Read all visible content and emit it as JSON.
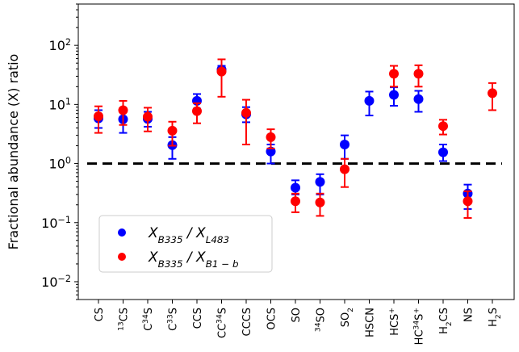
{
  "chart_data": {
    "type": "scatter",
    "ylabel": "Fractional abundance (X) ratio",
    "yscale": "log",
    "ylim": [
      0.005,
      500
    ],
    "yticks": [
      {
        "value": 0.01,
        "base": "10",
        "exp": "−2"
      },
      {
        "value": 0.1,
        "base": "10",
        "exp": "−1"
      },
      {
        "value": 1,
        "base": "10",
        "exp": "0"
      },
      {
        "value": 10,
        "base": "10",
        "exp": "1"
      },
      {
        "value": 100,
        "base": "10",
        "exp": "2"
      }
    ],
    "reference_line": {
      "y": 1,
      "style": "dashed",
      "color": "#000000"
    },
    "categories": [
      {
        "label": "CS",
        "parts": [
          {
            "t": "CS"
          }
        ]
      },
      {
        "label": "13CS",
        "parts": [
          {
            "t": "13",
            "sup": true
          },
          {
            "t": "CS"
          }
        ]
      },
      {
        "label": "C34S",
        "parts": [
          {
            "t": "C"
          },
          {
            "t": "34",
            "sup": true
          },
          {
            "t": "S"
          }
        ]
      },
      {
        "label": "C33S",
        "parts": [
          {
            "t": "C"
          },
          {
            "t": "33",
            "sup": true
          },
          {
            "t": "S"
          }
        ]
      },
      {
        "label": "CCS",
        "parts": [
          {
            "t": "CCS"
          }
        ]
      },
      {
        "label": "CC34S",
        "parts": [
          {
            "t": "CC"
          },
          {
            "t": "34",
            "sup": true
          },
          {
            "t": "S"
          }
        ]
      },
      {
        "label": "CCCS",
        "parts": [
          {
            "t": "CCCS"
          }
        ]
      },
      {
        "label": "OCS",
        "parts": [
          {
            "t": "OCS"
          }
        ]
      },
      {
        "label": "SO",
        "parts": [
          {
            "t": "SO"
          }
        ]
      },
      {
        "label": "34SO",
        "parts": [
          {
            "t": "34",
            "sup": true
          },
          {
            "t": "SO"
          }
        ]
      },
      {
        "label": "SO2",
        "parts": [
          {
            "t": "SO"
          },
          {
            "t": "2",
            "sub": true
          }
        ]
      },
      {
        "label": "HSCN",
        "parts": [
          {
            "t": "HSCN"
          }
        ]
      },
      {
        "label": "HCS+",
        "parts": [
          {
            "t": "HCS"
          },
          {
            "t": "+",
            "sup": true
          }
        ]
      },
      {
        "label": "HC34S+",
        "parts": [
          {
            "t": "HC"
          },
          {
            "t": "34",
            "sup": true
          },
          {
            "t": "S"
          },
          {
            "t": "+",
            "sup": true
          }
        ]
      },
      {
        "label": "H2CS",
        "parts": [
          {
            "t": "H"
          },
          {
            "t": "2",
            "sub": true
          },
          {
            "t": "CS"
          }
        ]
      },
      {
        "label": "NS",
        "parts": [
          {
            "t": "NS"
          }
        ]
      },
      {
        "label": "H2S",
        "parts": [
          {
            "t": "H"
          },
          {
            "t": "2",
            "sub": true
          },
          {
            "t": "S"
          }
        ]
      }
    ],
    "series": [
      {
        "name": "X_B335 / X_L483",
        "legend": {
          "parts": [
            {
              "t": "X"
            },
            {
              "t": "B335",
              "sub": true
            },
            {
              "t": " / X"
            },
            {
              "t": "L483",
              "sub": true
            }
          ]
        },
        "color": "#0000ff",
        "points": [
          {
            "x": 0,
            "y": 5.8,
            "lo": 4.0,
            "hi": 8.0
          },
          {
            "x": 1,
            "y": 5.6,
            "lo": 3.3,
            "hi": 7.5
          },
          {
            "x": 2,
            "y": 5.7,
            "lo": 4.2,
            "hi": 7.5
          },
          {
            "x": 3,
            "y": 2.05,
            "lo": 1.2,
            "hi": 2.8
          },
          {
            "x": 4,
            "y": 11.5,
            "lo": 8.5,
            "hi": 15.0
          },
          {
            "x": 5,
            "y": 39.0,
            "lo": 34.0,
            "hi": 45.0
          },
          {
            "x": 6,
            "y": 6.8,
            "lo": 5.0,
            "hi": 9.0
          },
          {
            "x": 7,
            "y": 1.6,
            "lo": 1.0,
            "hi": 2.1
          },
          {
            "x": 8,
            "y": 0.39,
            "lo": 0.3,
            "hi": 0.52
          },
          {
            "x": 9,
            "y": 0.49,
            "lo": 0.3,
            "hi": 0.66
          },
          {
            "x": 10,
            "y": 2.1,
            "lo": 1.2,
            "hi": 3.0
          },
          {
            "x": 11,
            "y": 11.5,
            "lo": 6.5,
            "hi": 16.5
          },
          {
            "x": 12,
            "y": 14.5,
            "lo": 9.5,
            "hi": 19.5
          },
          {
            "x": 13,
            "y": 12.3,
            "lo": 7.5,
            "hi": 17.0
          },
          {
            "x": 14,
            "y": 1.55,
            "lo": 1.1,
            "hi": 2.1
          },
          {
            "x": 15,
            "y": 0.31,
            "lo": 0.17,
            "hi": 0.44
          }
        ]
      },
      {
        "name": "X_B335 / X_B1-b",
        "legend": {
          "parts": [
            {
              "t": "X"
            },
            {
              "t": "B335",
              "sub": true
            },
            {
              "t": " / X"
            },
            {
              "t": "B1 − b",
              "sub": true
            }
          ]
        },
        "color": "#ff0000",
        "points": [
          {
            "x": 0,
            "y": 6.3,
            "lo": 3.3,
            "hi": 9.3
          },
          {
            "x": 1,
            "y": 8.0,
            "lo": 4.5,
            "hi": 11.5
          },
          {
            "x": 2,
            "y": 6.2,
            "lo": 3.5,
            "hi": 8.8
          },
          {
            "x": 3,
            "y": 3.6,
            "lo": 2.0,
            "hi": 5.1
          },
          {
            "x": 4,
            "y": 7.7,
            "lo": 4.8,
            "hi": 10.5
          },
          {
            "x": 5,
            "y": 36.0,
            "lo": 13.5,
            "hi": 58.0
          },
          {
            "x": 6,
            "y": 7.2,
            "lo": 2.1,
            "hi": 12.0
          },
          {
            "x": 7,
            "y": 2.8,
            "lo": 1.8,
            "hi": 3.8
          },
          {
            "x": 8,
            "y": 0.23,
            "lo": 0.15,
            "hi": 0.31
          },
          {
            "x": 9,
            "y": 0.22,
            "lo": 0.13,
            "hi": 0.31
          },
          {
            "x": 10,
            "y": 0.8,
            "lo": 0.4,
            "hi": 1.2
          },
          {
            "x": 12,
            "y": 33.0,
            "lo": 20.0,
            "hi": 45.0
          },
          {
            "x": 13,
            "y": 33.0,
            "lo": 20.0,
            "hi": 46.0
          },
          {
            "x": 14,
            "y": 4.3,
            "lo": 3.1,
            "hi": 5.5
          },
          {
            "x": 15,
            "y": 0.23,
            "lo": 0.12,
            "hi": 0.34
          },
          {
            "x": 16,
            "y": 15.5,
            "lo": 8.0,
            "hi": 23.0
          }
        ]
      }
    ],
    "legend_position": "lower-left"
  }
}
